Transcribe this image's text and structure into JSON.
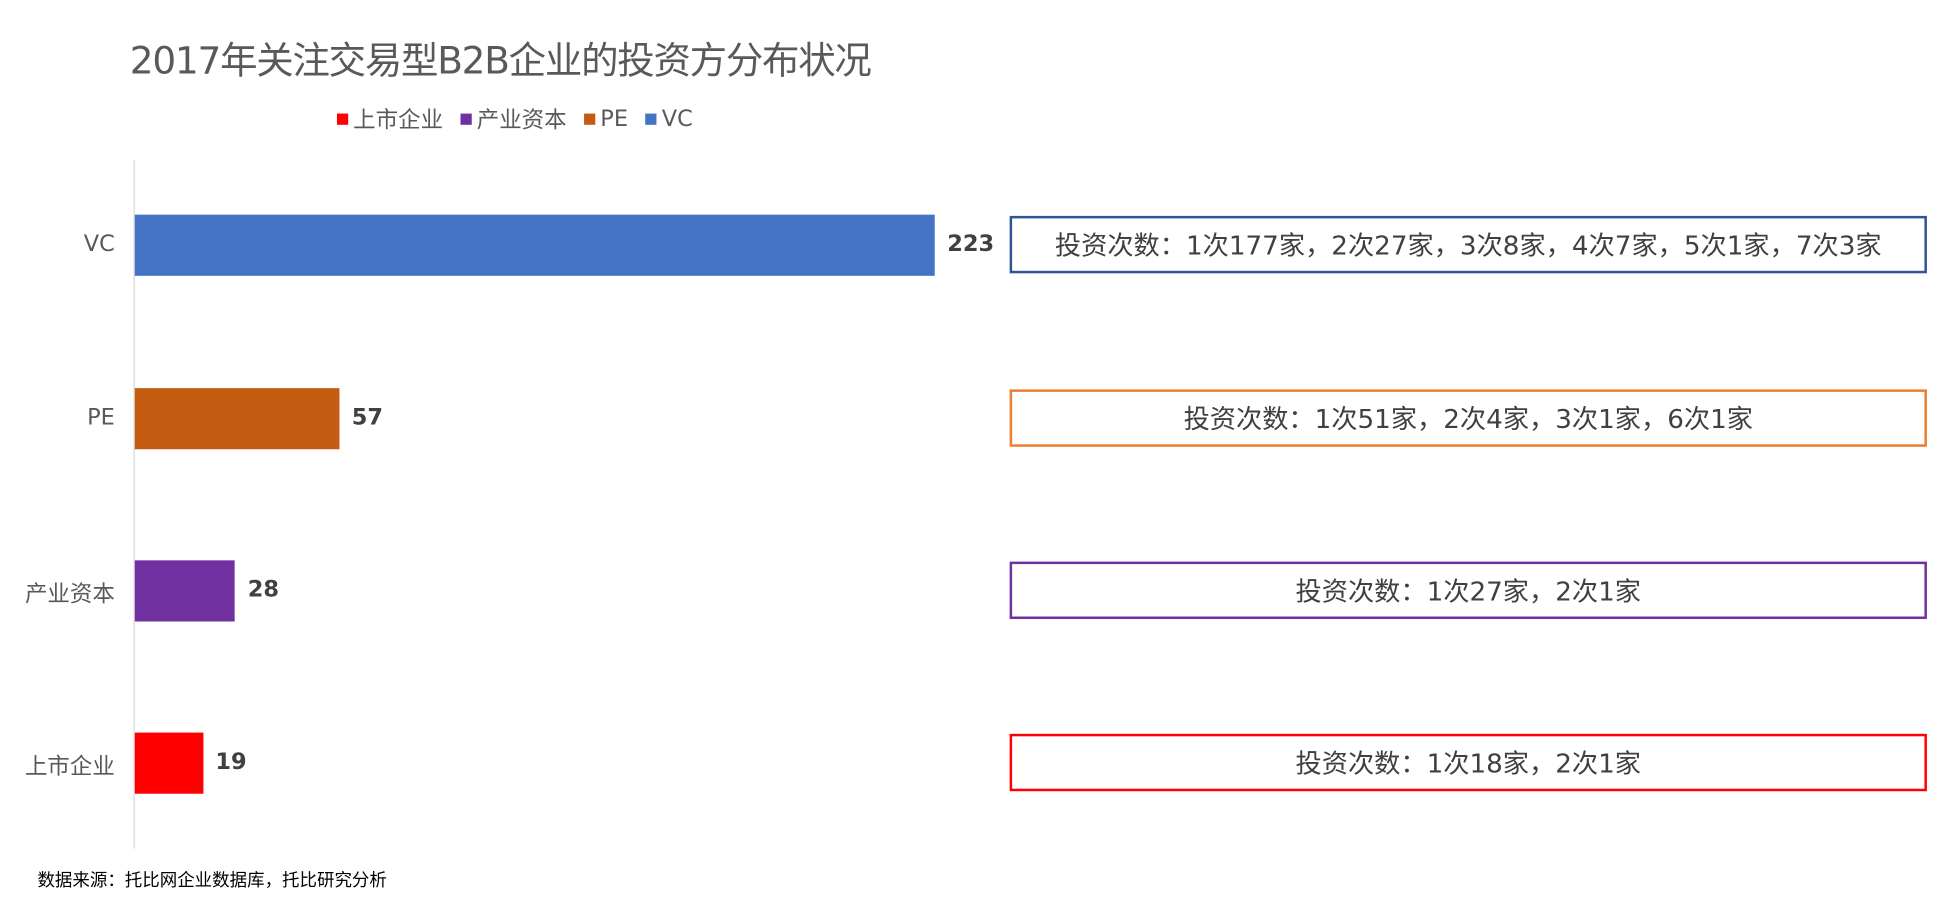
{
  "chart_data": {
    "type": "bar",
    "orientation": "horizontal",
    "title": "2017年关注交易型B2B企业的投资方分布状况",
    "categories": [
      "VC",
      "PE",
      "产业资本",
      "上市企业"
    ],
    "values": [
      223,
      57,
      28,
      19
    ],
    "colors": [
      "#4472C4",
      "#C55A11",
      "#7030A0",
      "#FF0000"
    ],
    "legend": {
      "placement": "top",
      "entries": [
        {
          "name": "上市企业",
          "color": "#FF0000"
        },
        {
          "name": "产业资本",
          "color": "#7030A0"
        },
        {
          "name": "PE",
          "color": "#C55A11"
        },
        {
          "name": "VC",
          "color": "#4472C4"
        }
      ]
    },
    "xlim": [
      0,
      223
    ],
    "grid": false,
    "annotations": [
      {
        "text": "投资次数：1次177家，2次27家，3次8家，4次7家，5次1家，7次3家",
        "border": "#2F5597"
      },
      {
        "text": "投资次数：1次51家，2次4家，3次1家，6次1家",
        "border": "#ED7D31"
      },
      {
        "text": "投资次数：1次27家，2次1家",
        "border": "#7030A0"
      },
      {
        "text": "投资次数：1次18家，2次1家",
        "border": "#FF0000"
      }
    ]
  },
  "source": "数据来源：托比网企业数据库，托比研究分析"
}
